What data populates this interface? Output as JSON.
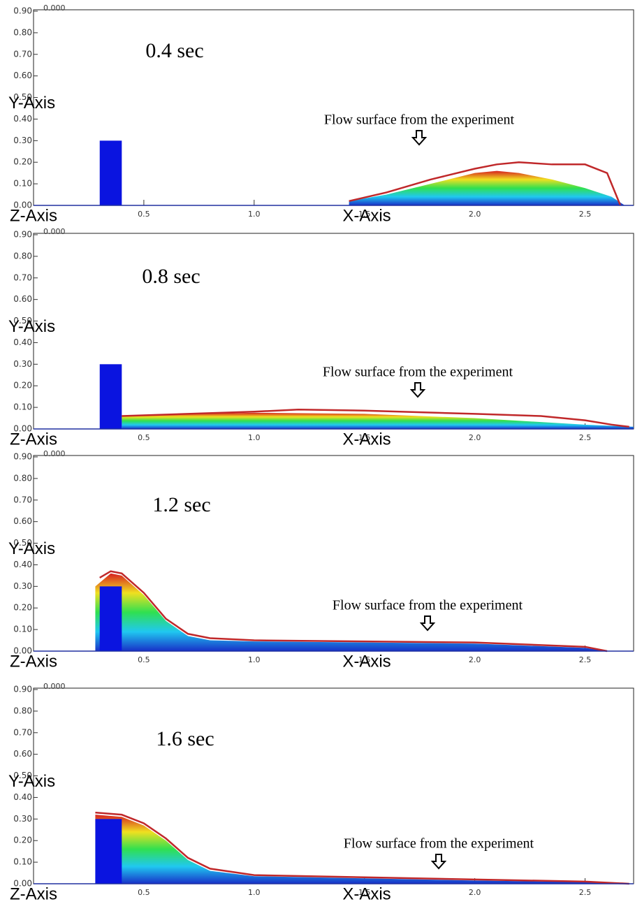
{
  "chart_data": [
    {
      "type": "area",
      "title": "0.4 sec",
      "time_label": "0.000",
      "annotation": "Flow surface from the experiment",
      "xlabel": "X-Axis",
      "ylabel": "Y-Axis",
      "zlabel": "Z-Axis",
      "xlim": [
        0,
        2.72
      ],
      "ylim": [
        0,
        0.9
      ],
      "xticks": [
        0.5,
        {
          "value": 1,
          "label": "1.0"
        },
        1.5,
        {
          "value": 2,
          "label": "2.0"
        },
        2.5
      ],
      "yticks": [
        {
          "value": 0,
          "label": "0.00"
        },
        {
          "value": 0.1,
          "label": "0.10"
        },
        {
          "value": 0.2,
          "label": "0.20"
        },
        {
          "value": 0.3,
          "label": "0.30"
        },
        {
          "value": 0.4,
          "label": "0.40"
        },
        {
          "value": 0.5,
          "label": "0.50"
        },
        {
          "value": 0.6,
          "label": "0.60"
        },
        {
          "value": 0.7,
          "label": "0.70"
        },
        {
          "value": 0.8,
          "label": "0.80"
        },
        {
          "value": 0.9,
          "label": "0.90"
        }
      ],
      "obstacle": {
        "x": [
          0.3,
          0.4
        ],
        "height": 0.3,
        "color": "#0a14e0"
      },
      "experiment": {
        "color": "#c0282a",
        "x": [
          1.43,
          1.6,
          1.8,
          2.0,
          2.1,
          2.2,
          2.35,
          2.5,
          2.6,
          2.66
        ],
        "y": [
          0.02,
          0.06,
          0.12,
          0.17,
          0.19,
          0.2,
          0.19,
          0.19,
          0.15,
          0.0
        ]
      },
      "simulation": {
        "colors": [
          "#d62020",
          "#f0e020",
          "#30e050",
          "#20c8f0",
          "#1830c8"
        ],
        "x": [
          1.43,
          1.6,
          1.8,
          2.0,
          2.1,
          2.2,
          2.35,
          2.5,
          2.62,
          2.68
        ],
        "y": [
          0.02,
          0.05,
          0.1,
          0.15,
          0.16,
          0.15,
          0.12,
          0.08,
          0.04,
          0.0
        ]
      }
    },
    {
      "type": "area",
      "title": "0.8 sec",
      "time_label": "0.000",
      "annotation": "Flow surface from the experiment",
      "xlabel": "X-Axis",
      "ylabel": "Y-Axis",
      "zlabel": "Z-Axis",
      "xlim": [
        0,
        2.72
      ],
      "ylim": [
        0,
        0.9
      ],
      "xticks": [
        0.5,
        {
          "value": 1,
          "label": "1.0"
        },
        1.5,
        {
          "value": 2,
          "label": "2.0"
        },
        2.5
      ],
      "yticks": [
        {
          "value": 0,
          "label": "0.00"
        },
        {
          "value": 0.1,
          "label": "0.10"
        },
        {
          "value": 0.2,
          "label": "0.20"
        },
        {
          "value": 0.3,
          "label": "0.30"
        },
        {
          "value": 0.4,
          "label": "0.40"
        },
        {
          "value": 0.5,
          "label": "0.50"
        },
        {
          "value": 0.6,
          "label": "0.60"
        },
        {
          "value": 0.7,
          "label": "0.70"
        },
        {
          "value": 0.8,
          "label": "0.80"
        },
        {
          "value": 0.9,
          "label": "0.90"
        }
      ],
      "obstacle": {
        "x": [
          0.3,
          0.4
        ],
        "height": 0.3,
        "color": "#0a14e0"
      },
      "experiment": {
        "color": "#c0282a",
        "x": [
          0.4,
          0.7,
          1.0,
          1.2,
          1.5,
          2.0,
          2.3,
          2.5,
          2.62,
          2.7
        ],
        "y": [
          0.06,
          0.07,
          0.08,
          0.09,
          0.085,
          0.07,
          0.06,
          0.04,
          0.02,
          0.01
        ]
      },
      "simulation": {
        "colors": [
          "#d62020",
          "#f0e020",
          "#30e050",
          "#20c8f0",
          "#1830c8"
        ],
        "x": [
          0.4,
          0.7,
          1.0,
          1.5,
          2.0,
          2.5,
          2.72
        ],
        "y": [
          0.06,
          0.07,
          0.075,
          0.07,
          0.05,
          0.02,
          0.01
        ]
      }
    },
    {
      "type": "area",
      "title": "1.2 sec",
      "time_label": "0.000",
      "annotation": "Flow surface from the experiment",
      "xlabel": "X-Axis",
      "ylabel": "Y-Axis",
      "zlabel": "Z-Axis",
      "xlim": [
        0,
        2.72
      ],
      "ylim": [
        0,
        0.9
      ],
      "xticks": [
        0.5,
        {
          "value": 1,
          "label": "1.0"
        },
        1.5,
        {
          "value": 2,
          "label": "2.0"
        },
        2.5
      ],
      "yticks": [
        {
          "value": 0,
          "label": "0.00"
        },
        {
          "value": 0.1,
          "label": "0.10"
        },
        {
          "value": 0.2,
          "label": "0.20"
        },
        {
          "value": 0.3,
          "label": "0.30"
        },
        {
          "value": 0.4,
          "label": "0.40"
        },
        {
          "value": 0.5,
          "label": "0.50"
        },
        {
          "value": 0.6,
          "label": "0.60"
        },
        {
          "value": 0.7,
          "label": "0.70"
        },
        {
          "value": 0.8,
          "label": "0.80"
        },
        {
          "value": 0.9,
          "label": "0.90"
        }
      ],
      "obstacle": {
        "x": [
          0.3,
          0.4
        ],
        "height": 0.3,
        "color": "#0a14e0"
      },
      "experiment": {
        "color": "#c0282a",
        "x": [
          0.3,
          0.35,
          0.4,
          0.5,
          0.6,
          0.7,
          0.8,
          1.0,
          1.5,
          2.0,
          2.5,
          2.6
        ],
        "y": [
          0.34,
          0.37,
          0.36,
          0.27,
          0.15,
          0.08,
          0.06,
          0.05,
          0.045,
          0.04,
          0.02,
          0.0
        ]
      },
      "simulation": {
        "colors": [
          "#d62020",
          "#f0e020",
          "#30e050",
          "#20c8f0",
          "#1830c8"
        ],
        "x": [
          0.28,
          0.35,
          0.4,
          0.5,
          0.6,
          0.7,
          0.8,
          1.0,
          1.5,
          2.0,
          2.5,
          2.6
        ],
        "y": [
          0.3,
          0.36,
          0.35,
          0.26,
          0.14,
          0.07,
          0.05,
          0.045,
          0.04,
          0.035,
          0.015,
          0.0
        ]
      }
    },
    {
      "type": "area",
      "title": "1.6 sec",
      "time_label": "0.000",
      "annotation": "Flow surface from the experiment",
      "xlabel": "X-Axis",
      "ylabel": "Y-Axis",
      "zlabel": "Z-Axis",
      "xlim": [
        0,
        2.72
      ],
      "ylim": [
        0,
        0.9
      ],
      "xticks": [
        0.5,
        {
          "value": 1,
          "label": "1.0"
        },
        1.5,
        {
          "value": 2,
          "label": "2.0"
        },
        2.5
      ],
      "yticks": [
        {
          "value": 0,
          "label": "0.00"
        },
        {
          "value": 0.1,
          "label": "0.10"
        },
        {
          "value": 0.2,
          "label": "0.20"
        },
        {
          "value": 0.3,
          "label": "0.30"
        },
        {
          "value": 0.4,
          "label": "0.40"
        },
        {
          "value": 0.5,
          "label": "0.50"
        },
        {
          "value": 0.6,
          "label": "0.60"
        },
        {
          "value": 0.7,
          "label": "0.70"
        },
        {
          "value": 0.8,
          "label": "0.80"
        },
        {
          "value": 0.9,
          "label": "0.90"
        }
      ],
      "obstacle": {
        "x": [
          0.28,
          0.4
        ],
        "height": 0.3,
        "color": "#0a14e0"
      },
      "experiment": {
        "color": "#c0282a",
        "x": [
          0.28,
          0.4,
          0.5,
          0.6,
          0.7,
          0.8,
          1.0,
          1.5,
          2.0,
          2.5,
          2.7
        ],
        "y": [
          0.33,
          0.32,
          0.28,
          0.21,
          0.12,
          0.07,
          0.04,
          0.03,
          0.02,
          0.01,
          0.0
        ]
      },
      "simulation": {
        "colors": [
          "#d62020",
          "#f0e020",
          "#30e050",
          "#20c8f0",
          "#1830c8"
        ],
        "x": [
          0.28,
          0.4,
          0.5,
          0.6,
          0.7,
          0.8,
          1.0,
          1.5,
          2.0,
          2.5,
          2.7
        ],
        "y": [
          0.32,
          0.31,
          0.27,
          0.2,
          0.11,
          0.06,
          0.035,
          0.025,
          0.015,
          0.008,
          0.0
        ]
      }
    }
  ]
}
